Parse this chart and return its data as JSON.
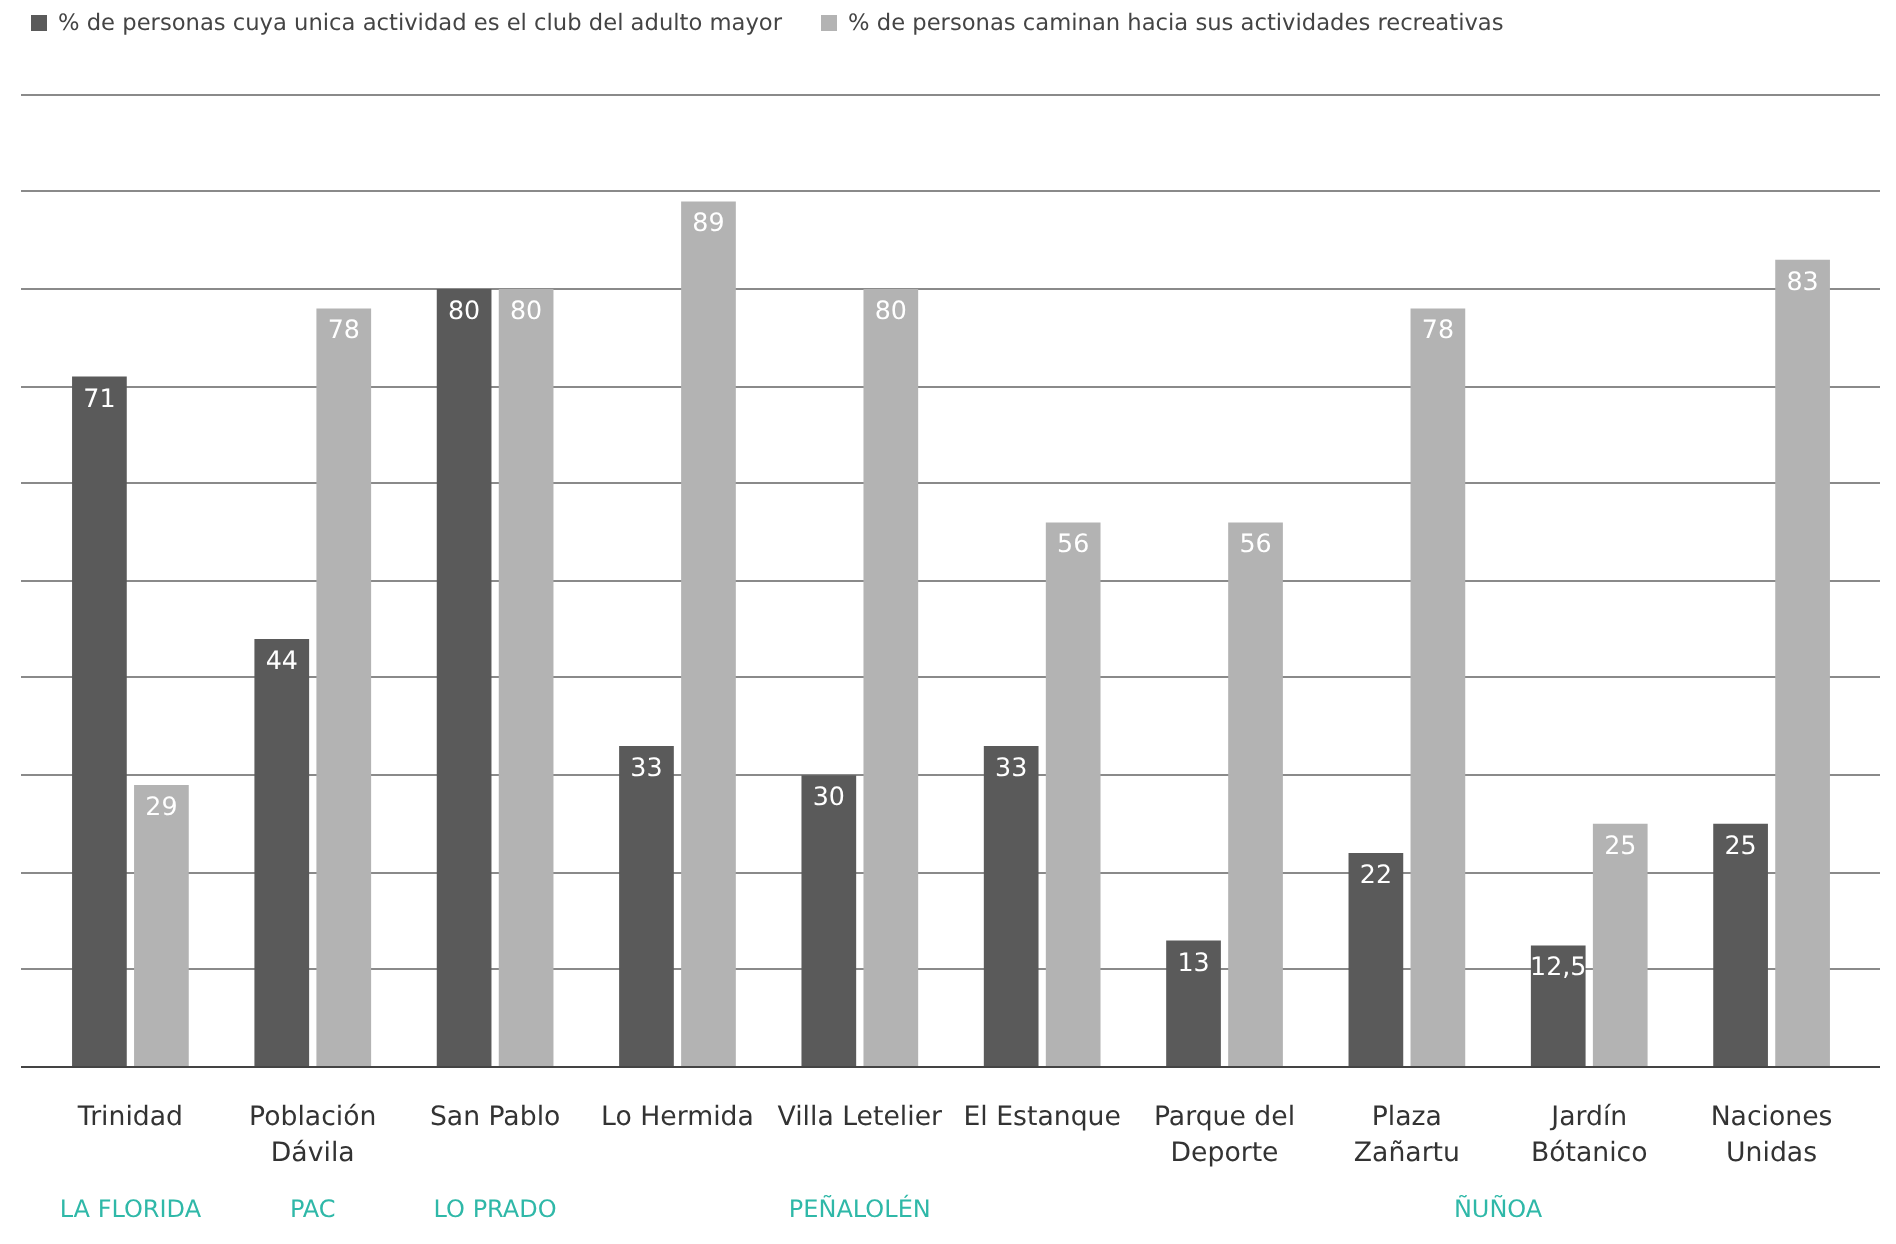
{
  "chart_data": {
    "type": "bar",
    "categories": [
      "Trinidad",
      "Población\nDávila",
      "San Pablo",
      "Lo Hermida",
      "Villa Letelier",
      "El Estanque",
      "Parque del\nDeporte",
      "Plaza\nZañartu",
      "Jardín\nBótanico",
      "Naciones\nUnidas"
    ],
    "series": [
      {
        "name": "% de personas cuya unica actividad es el club del adulto mayor",
        "color": "#5a5a5a",
        "values": [
          71,
          44,
          80,
          33,
          30,
          33,
          13,
          22,
          12.5,
          25
        ],
        "value_labels": [
          "71",
          "44",
          "80",
          "33",
          "30",
          "33",
          "13",
          "22",
          "12,5",
          "25"
        ]
      },
      {
        "name": "% de personas caminan hacia sus actividades recreativas",
        "color": "#b3b3b3",
        "values": [
          29,
          78,
          80,
          89,
          80,
          56,
          56,
          78,
          25,
          83
        ],
        "value_labels": [
          "29",
          "78",
          "80",
          "89",
          "80",
          "56",
          "56",
          "78",
          "25",
          "83"
        ]
      }
    ],
    "tick_labels": "x",
    "grid": "y",
    "legend": "top left",
    "annotations": [
      "LA FLORIDA",
      "PAC",
      "LO PRADO",
      "PEÑALOLÉN",
      "ÑUÑOA"
    ]
  }
}
